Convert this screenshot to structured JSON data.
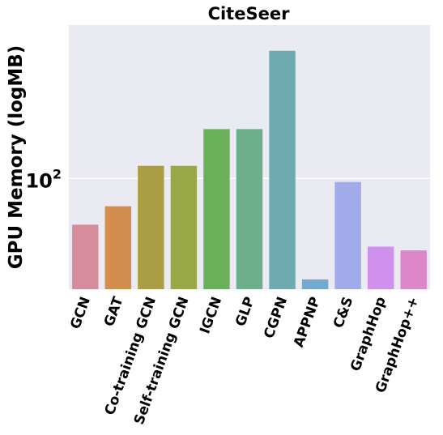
{
  "chart_data": {
    "type": "bar",
    "title": "CiteSeer",
    "xlabel": "",
    "ylabel": "GPU Memory (logMB)",
    "yscale": "log",
    "ylim": [
      19,
      1000
    ],
    "ytick_labels": [
      {
        "value": 100,
        "base": "10",
        "exponent": "2"
      }
    ],
    "grid": true,
    "categories": [
      "GCN",
      "GAT",
      "Co-training GCN",
      "Self-training GCN",
      "IGCN",
      "GLP",
      "CGPN",
      "APPNP",
      "C&S",
      "GraphHop",
      "GraphHop++"
    ],
    "values": [
      50,
      66,
      121,
      121,
      210,
      210,
      680,
      22,
      95,
      36,
      34
    ],
    "colors": [
      "#d68c9c",
      "#d38d4e",
      "#aa9d44",
      "#99a847",
      "#6ab05b",
      "#6dae8b",
      "#6faab0",
      "#73a9ce",
      "#a2abea",
      "#d091ed",
      "#dd87c9"
    ],
    "plot_background": "#eaeaf2",
    "grid_color": "#ffffff"
  }
}
